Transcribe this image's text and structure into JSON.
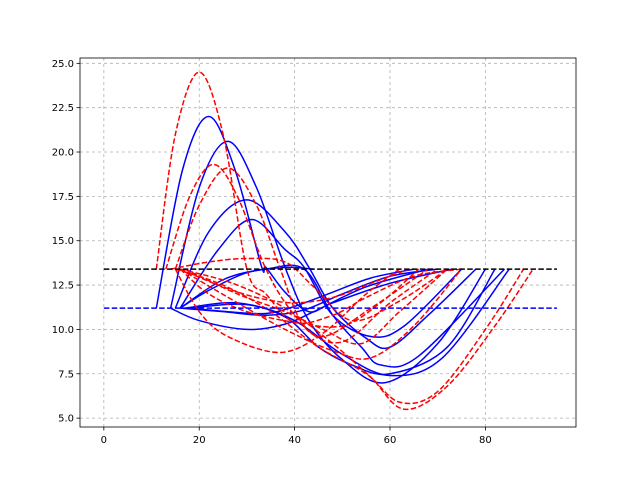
{
  "chart_data": {
    "type": "line",
    "title": "",
    "xlabel": "",
    "ylabel": "",
    "xlim": [
      -5,
      99
    ],
    "ylim": [
      4.5,
      25.3
    ],
    "grid": true,
    "xticks": [
      0,
      20,
      40,
      60,
      80
    ],
    "yticks": [
      5.0,
      7.5,
      10.0,
      12.5,
      15.0,
      17.5,
      20.0,
      22.5,
      25.0
    ],
    "xtick_labels": [
      "0",
      "20",
      "40",
      "60",
      "80"
    ],
    "ytick_labels": [
      "5.0",
      "7.5",
      "10.0",
      "12.5",
      "15.0",
      "17.5",
      "20.0",
      "22.5",
      "25.0"
    ],
    "colors": {
      "blue": "#0000ff",
      "red": "#ff0000",
      "black": "#000000",
      "grid": "#b0b0b0"
    },
    "reference_lines": [
      {
        "y": 13.4,
        "x": [
          0,
          95
        ],
        "color": "#000000",
        "style": "dashed"
      },
      {
        "y": 11.2,
        "x": [
          0,
          95
        ],
        "color": "#0000ff",
        "style": "dashed"
      }
    ],
    "series": [
      {
        "color": "#0000ff",
        "style": "solid",
        "x": [
          11,
          16.5,
          22,
          27.5,
          33,
          34,
          38,
          43,
          48,
          60,
          73
        ],
        "y": [
          11.2,
          19.0,
          22.0,
          19.0,
          13.6,
          13.5,
          12.1,
          11.0,
          11.5,
          12.6,
          13.4
        ]
      },
      {
        "color": "#0000ff",
        "style": "solid",
        "x": [
          14,
          20,
          26,
          32,
          38,
          43,
          50,
          59,
          70,
          80
        ],
        "y": [
          11.2,
          18.0,
          20.6,
          18.0,
          13.5,
          10.5,
          8.3,
          7.0,
          9.2,
          13.4
        ]
      },
      {
        "color": "#0000ff",
        "style": "solid",
        "x": [
          15,
          22,
          30,
          38,
          43,
          48,
          55,
          60,
          68,
          78
        ],
        "y": [
          11.2,
          15.5,
          17.3,
          15.5,
          13.5,
          11.2,
          9.5,
          9.0,
          10.8,
          13.4
        ]
      },
      {
        "color": "#0000ff",
        "style": "solid",
        "x": [
          16,
          24,
          31,
          38,
          42,
          48,
          56,
          63,
          75
        ],
        "y": [
          11.2,
          14.5,
          16.2,
          14.5,
          13.5,
          10.8,
          9.6,
          10.2,
          13.4
        ]
      },
      {
        "color": "#0000ff",
        "style": "solid",
        "x": [
          16,
          25,
          34,
          42,
          48,
          54,
          58,
          66,
          84
        ],
        "y": [
          11.2,
          12.8,
          13.4,
          13.4,
          10.8,
          9.0,
          8.0,
          8.5,
          13.4
        ]
      },
      {
        "color": "#0000ff",
        "style": "solid",
        "x": [
          16,
          22,
          30,
          38,
          44
        ],
        "y": [
          11.2,
          12.2,
          13.2,
          13.5,
          13.4
        ]
      },
      {
        "color": "#0000ff",
        "style": "solid",
        "x": [
          14,
          20,
          30,
          38,
          44,
          55,
          68
        ],
        "y": [
          11.2,
          10.5,
          10.0,
          10.3,
          11.0,
          12.4,
          13.4
        ]
      },
      {
        "color": "#0000ff",
        "style": "solid",
        "x": [
          16,
          25,
          34,
          42,
          50,
          60,
          70
        ],
        "y": [
          11.2,
          11.0,
          10.8,
          11.1,
          12.0,
          13.0,
          13.4
        ]
      },
      {
        "color": "#0000ff",
        "style": "solid",
        "x": [
          18,
          26,
          34,
          40,
          48,
          56,
          65
        ],
        "y": [
          11.2,
          11.0,
          10.9,
          11.3,
          12.1,
          12.9,
          13.4
        ]
      },
      {
        "color": "#0000ff",
        "style": "solid",
        "x": [
          17,
          28,
          38,
          45,
          52,
          60,
          72,
          82
        ],
        "y": [
          11.2,
          11.5,
          10.7,
          9.0,
          8.0,
          7.5,
          9.0,
          13.4
        ]
      },
      {
        "color": "#0000ff",
        "style": "solid",
        "x": [
          18,
          30,
          40,
          50,
          60,
          71,
          85
        ],
        "y": [
          11.2,
          11.4,
          10.5,
          8.6,
          7.4,
          8.4,
          13.4
        ]
      },
      {
        "color": "#ff0000",
        "style": "dashed",
        "x": [
          11,
          15,
          20,
          25,
          30,
          34,
          40,
          48,
          55,
          65,
          75
        ],
        "y": [
          13.4,
          21.0,
          24.5,
          21.0,
          13.4,
          12.0,
          10.4,
          10.8,
          11.8,
          13.0,
          13.4
        ]
      },
      {
        "color": "#ff0000",
        "style": "dashed",
        "x": [
          13,
          18,
          23,
          28,
          34,
          40,
          46,
          56,
          68
        ],
        "y": [
          13.4,
          17.5,
          19.3,
          17.5,
          13.4,
          10.8,
          9.6,
          11.2,
          13.4
        ]
      },
      {
        "color": "#ff0000",
        "style": "dashed",
        "x": [
          15,
          20,
          26,
          32,
          37,
          42,
          50,
          60,
          70
        ],
        "y": [
          13.4,
          17.0,
          19.1,
          17.0,
          13.4,
          10.2,
          9.3,
          11.5,
          13.4
        ]
      },
      {
        "color": "#ff0000",
        "style": "dashed",
        "x": [
          14,
          22,
          30,
          38,
          44,
          52,
          62,
          72
        ],
        "y": [
          13.4,
          13.8,
          14.0,
          13.8,
          12.4,
          10.5,
          11.6,
          13.4
        ]
      },
      {
        "color": "#ff0000",
        "style": "dashed",
        "x": [
          15,
          20,
          26,
          37,
          46,
          55,
          62
        ],
        "y": [
          13.4,
          11.0,
          9.6,
          8.7,
          9.8,
          12.0,
          13.4
        ]
      },
      {
        "color": "#ff0000",
        "style": "dashed",
        "x": [
          16,
          22,
          30,
          40,
          50,
          58,
          66
        ],
        "y": [
          13.4,
          12.0,
          11.0,
          10.4,
          10.2,
          11.5,
          13.4
        ]
      },
      {
        "color": "#ff0000",
        "style": "dashed",
        "x": [
          16,
          24,
          32,
          40,
          48,
          56,
          64
        ],
        "y": [
          13.4,
          12.5,
          11.8,
          11.5,
          11.8,
          12.6,
          13.4
        ]
      },
      {
        "color": "#ff0000",
        "style": "dashed",
        "x": [
          15,
          25,
          35,
          45,
          55,
          62,
          70,
          80,
          88
        ],
        "y": [
          13.4,
          12.5,
          11.0,
          9.0,
          7.5,
          5.9,
          6.5,
          10.0,
          13.4
        ]
      },
      {
        "color": "#ff0000",
        "style": "dashed",
        "x": [
          16,
          27,
          38,
          48,
          56,
          63,
          72,
          82,
          90
        ],
        "y": [
          13.4,
          12.6,
          11.2,
          9.2,
          7.3,
          5.5,
          6.8,
          10.2,
          13.4
        ]
      },
      {
        "color": "#ff0000",
        "style": "dashed",
        "x": [
          16,
          28,
          38,
          48,
          56,
          65,
          75
        ],
        "y": [
          13.4,
          11.5,
          10.0,
          8.8,
          8.4,
          10.2,
          13.4
        ]
      },
      {
        "color": "#ff0000",
        "style": "dashed",
        "x": [
          17,
          28,
          38,
          46,
          54,
          62,
          72
        ],
        "y": [
          13.4,
          12.0,
          11.0,
          10.0,
          9.2,
          11.0,
          13.4
        ]
      }
    ]
  }
}
